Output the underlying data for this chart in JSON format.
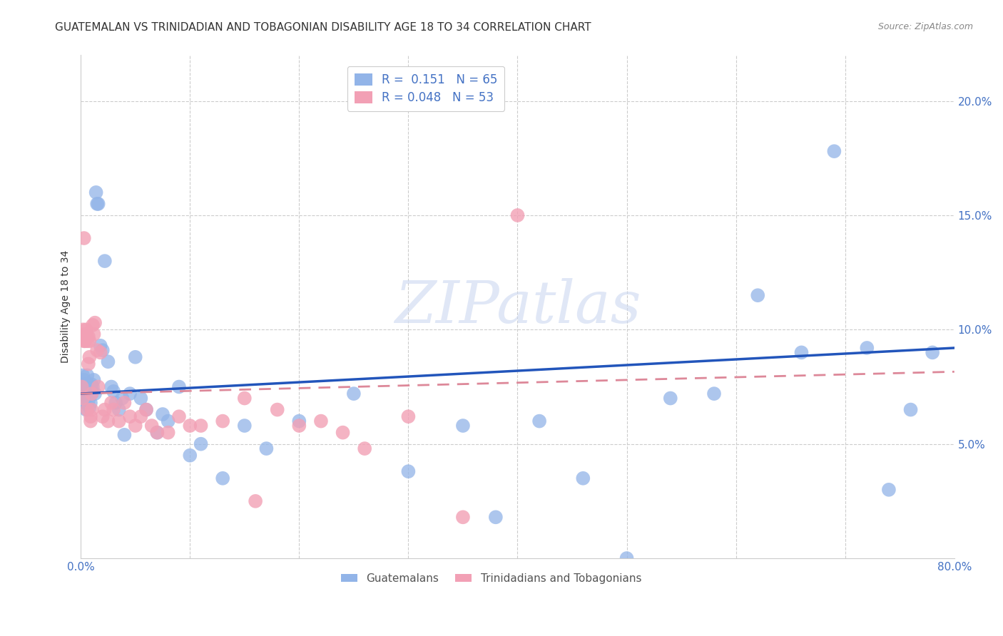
{
  "title": "GUATEMALAN VS TRINIDADIAN AND TOBAGONIAN DISABILITY AGE 18 TO 34 CORRELATION CHART",
  "source": "Source: ZipAtlas.com",
  "ylabel": "Disability Age 18 to 34",
  "watermark": "ZIPatlas",
  "xlim": [
    0,
    0.8
  ],
  "ylim": [
    0,
    0.22
  ],
  "yticks_right": [
    0.05,
    0.1,
    0.15,
    0.2
  ],
  "ytick_labels_right": [
    "5.0%",
    "10.0%",
    "15.0%",
    "20.0%"
  ],
  "guatemalan_color": "#92b4e8",
  "trinidadian_color": "#f2a0b5",
  "guatemalan_R": 0.151,
  "guatemalan_N": 65,
  "trinidadian_R": 0.048,
  "trinidadian_N": 53,
  "guatemalan_x": [
    0.001,
    0.002,
    0.002,
    0.003,
    0.003,
    0.004,
    0.004,
    0.005,
    0.005,
    0.006,
    0.006,
    0.007,
    0.007,
    0.008,
    0.008,
    0.009,
    0.009,
    0.01,
    0.01,
    0.011,
    0.012,
    0.013,
    0.014,
    0.015,
    0.016,
    0.018,
    0.02,
    0.022,
    0.025,
    0.028,
    0.03,
    0.032,
    0.035,
    0.038,
    0.04,
    0.045,
    0.05,
    0.055,
    0.06,
    0.07,
    0.075,
    0.08,
    0.09,
    0.1,
    0.11,
    0.13,
    0.15,
    0.17,
    0.2,
    0.25,
    0.3,
    0.35,
    0.38,
    0.42,
    0.46,
    0.5,
    0.54,
    0.58,
    0.62,
    0.66,
    0.69,
    0.72,
    0.74,
    0.76,
    0.78
  ],
  "guatemalan_y": [
    0.075,
    0.08,
    0.073,
    0.072,
    0.078,
    0.068,
    0.076,
    0.073,
    0.065,
    0.08,
    0.071,
    0.069,
    0.074,
    0.066,
    0.075,
    0.074,
    0.068,
    0.076,
    0.072,
    0.075,
    0.078,
    0.072,
    0.16,
    0.155,
    0.155,
    0.093,
    0.091,
    0.13,
    0.086,
    0.075,
    0.073,
    0.068,
    0.065,
    0.07,
    0.054,
    0.072,
    0.088,
    0.07,
    0.065,
    0.055,
    0.063,
    0.06,
    0.075,
    0.045,
    0.05,
    0.035,
    0.058,
    0.048,
    0.06,
    0.072,
    0.038,
    0.058,
    0.018,
    0.06,
    0.035,
    0.0,
    0.07,
    0.072,
    0.115,
    0.09,
    0.178,
    0.092,
    0.03,
    0.065,
    0.09
  ],
  "trinidadian_x": [
    0.001,
    0.002,
    0.002,
    0.003,
    0.003,
    0.004,
    0.004,
    0.005,
    0.005,
    0.006,
    0.006,
    0.007,
    0.007,
    0.008,
    0.008,
    0.009,
    0.009,
    0.01,
    0.01,
    0.011,
    0.012,
    0.013,
    0.015,
    0.016,
    0.018,
    0.02,
    0.022,
    0.025,
    0.028,
    0.03,
    0.035,
    0.04,
    0.045,
    0.05,
    0.055,
    0.06,
    0.065,
    0.07,
    0.08,
    0.09,
    0.1,
    0.11,
    0.13,
    0.15,
    0.16,
    0.18,
    0.2,
    0.22,
    0.24,
    0.26,
    0.3,
    0.35,
    0.4
  ],
  "trinidadian_y": [
    0.075,
    0.07,
    0.1,
    0.095,
    0.14,
    0.098,
    0.095,
    0.1,
    0.098,
    0.095,
    0.065,
    0.097,
    0.085,
    0.095,
    0.088,
    0.062,
    0.06,
    0.065,
    0.072,
    0.102,
    0.098,
    0.103,
    0.091,
    0.075,
    0.09,
    0.062,
    0.065,
    0.06,
    0.068,
    0.065,
    0.06,
    0.068,
    0.062,
    0.058,
    0.062,
    0.065,
    0.058,
    0.055,
    0.055,
    0.062,
    0.058,
    0.058,
    0.06,
    0.07,
    0.025,
    0.065,
    0.058,
    0.06,
    0.055,
    0.048,
    0.062,
    0.018,
    0.15
  ],
  "line_blue_color": "#2255bb",
  "line_pink_color": "#dd8899",
  "background_color": "#ffffff",
  "grid_color": "#cccccc",
  "title_fontsize": 11,
  "label_fontsize": 10,
  "tick_fontsize": 11,
  "axis_color": "#4472c4",
  "marker_size": 200
}
